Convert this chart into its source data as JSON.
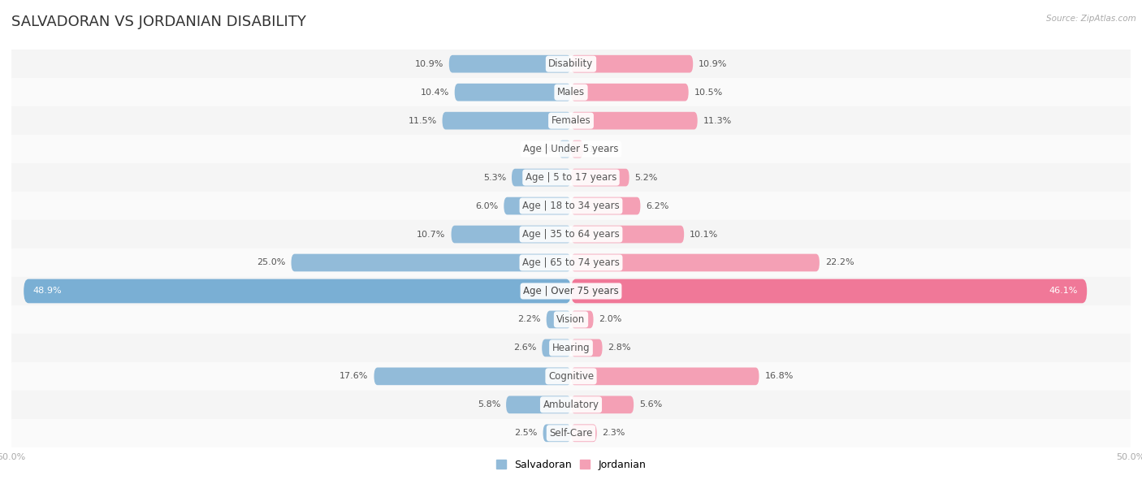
{
  "title": "SALVADORAN VS JORDANIAN DISABILITY",
  "source": "Source: ZipAtlas.com",
  "categories": [
    "Disability",
    "Males",
    "Females",
    "Age | Under 5 years",
    "Age | 5 to 17 years",
    "Age | 18 to 34 years",
    "Age | 35 to 64 years",
    "Age | 65 to 74 years",
    "Age | Over 75 years",
    "Vision",
    "Hearing",
    "Cognitive",
    "Ambulatory",
    "Self-Care"
  ],
  "salvadoran": [
    10.9,
    10.4,
    11.5,
    1.1,
    5.3,
    6.0,
    10.7,
    25.0,
    48.9,
    2.2,
    2.6,
    17.6,
    5.8,
    2.5
  ],
  "jordanian": [
    10.9,
    10.5,
    11.3,
    1.1,
    5.2,
    6.2,
    10.1,
    22.2,
    46.1,
    2.0,
    2.8,
    16.8,
    5.6,
    2.3
  ],
  "max_val": 50.0,
  "salvadoran_color": "#92bbd9",
  "jordanian_color": "#f4a0b5",
  "salvadoran_color_full": "#7aafd4",
  "jordanian_color_full": "#f07898",
  "row_bg_even": "#f5f5f5",
  "row_bg_odd": "#fafafa",
  "bar_height": 0.62,
  "title_fontsize": 13,
  "label_fontsize": 8.5,
  "value_fontsize": 8.0,
  "tick_fontsize": 8,
  "full_row_idx": 8
}
